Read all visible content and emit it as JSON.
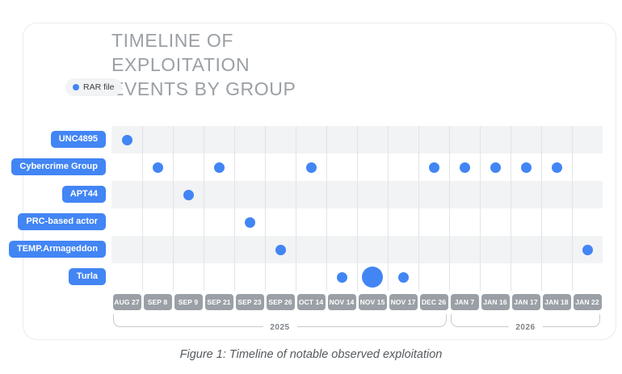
{
  "header": {
    "title_lines": [
      "TIMELINE OF",
      "EXPLOITATION",
      "EVENTS BY GROUP"
    ],
    "legend_label": "RAR file"
  },
  "figure": {
    "caption": "Figure 1: Timeline of notable observed exploitation"
  },
  "chart_data": {
    "type": "scatter",
    "title": "TIMELINE OF EXPLOITATION EVENTS BY GROUP",
    "legend_entries": [
      {
        "label": "RAR file",
        "color": "#4285f4"
      }
    ],
    "x_categories": [
      "AUG 27",
      "SEP 8",
      "SEP 9",
      "SEP 21",
      "SEP 23",
      "SEP 26",
      "OCT 14",
      "NOV 14",
      "NOV 15",
      "NOV 17",
      "DEC 26",
      "JAN 7",
      "JAN 16",
      "JAN 17",
      "JAN 18",
      "JAN 22"
    ],
    "y_categories": [
      "UNC4895",
      "Cybercrime Group",
      "APT44",
      "PRC-based actor",
      "TEMP.Armageddon",
      "Turla"
    ],
    "year_brackets": [
      {
        "label": "2025",
        "from": "AUG 27",
        "to": "DEC 26"
      },
      {
        "label": "2026",
        "from": "JAN 7",
        "to": "JAN 22"
      }
    ],
    "points": [
      {
        "group": "UNC4895",
        "date": "AUG 27",
        "size": "normal"
      },
      {
        "group": "Cybercrime Group",
        "date": "SEP 8",
        "size": "normal"
      },
      {
        "group": "Cybercrime Group",
        "date": "SEP 21",
        "size": "normal"
      },
      {
        "group": "Cybercrime Group",
        "date": "OCT 14",
        "size": "normal"
      },
      {
        "group": "Cybercrime Group",
        "date": "DEC 26",
        "size": "normal"
      },
      {
        "group": "Cybercrime Group",
        "date": "JAN 7",
        "size": "normal"
      },
      {
        "group": "Cybercrime Group",
        "date": "JAN 16",
        "size": "normal"
      },
      {
        "group": "Cybercrime Group",
        "date": "JAN 17",
        "size": "normal"
      },
      {
        "group": "Cybercrime Group",
        "date": "JAN 18",
        "size": "normal"
      },
      {
        "group": "APT44",
        "date": "SEP 9",
        "size": "normal"
      },
      {
        "group": "PRC-based actor",
        "date": "SEP 23",
        "size": "normal"
      },
      {
        "group": "TEMP.Armageddon",
        "date": "SEP 26",
        "size": "normal"
      },
      {
        "group": "TEMP.Armageddon",
        "date": "JAN 22",
        "size": "normal"
      },
      {
        "group": "Turla",
        "date": "NOV 14",
        "size": "normal"
      },
      {
        "group": "Turla",
        "date": "NOV 15",
        "size": "large"
      },
      {
        "group": "Turla",
        "date": "NOV 17",
        "size": "normal"
      }
    ],
    "layout": {
      "grid": true,
      "legend_position": "left-of-title",
      "row_banding": true
    },
    "colors": {
      "dot": "#4285f4",
      "group_badge": "#4285f4",
      "date_badge": "#9aa0a6",
      "row_band": "#f1f3f4",
      "title_text": "#9aa0a6"
    }
  }
}
